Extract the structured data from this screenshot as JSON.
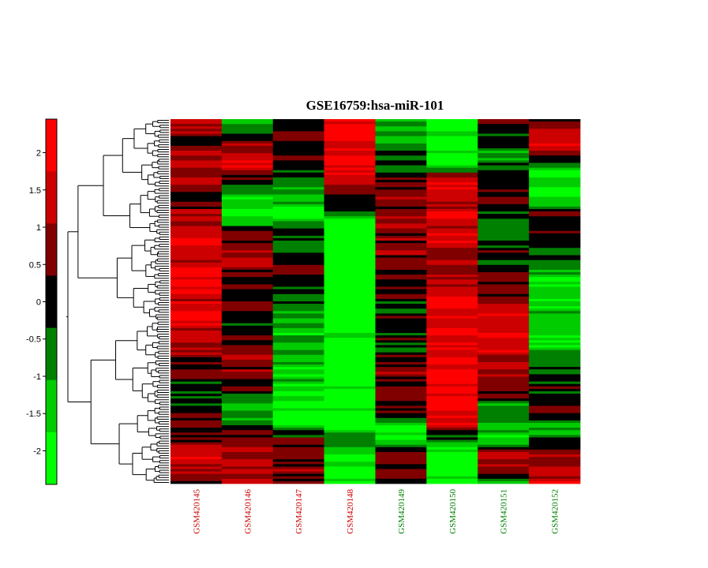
{
  "chart_data": {
    "type": "heatmap",
    "title": "GSE16759:hsa-miR-101",
    "colorbar": {
      "ticks": [
        "2",
        "1.5",
        "1",
        "0.5",
        "0",
        "-0.5",
        "-1",
        "-1.5",
        "-2"
      ],
      "tick_values": [
        2,
        1.5,
        1,
        0.5,
        0,
        -0.5,
        -1,
        -1.5,
        -2
      ],
      "range": [
        -2.45,
        2.45
      ],
      "levels": [
        "#00ff00",
        "#00cc00",
        "#008000",
        "#000000",
        "#800000",
        "#cc0000",
        "#ff0000"
      ]
    },
    "columns": [
      {
        "label": "GSM420145",
        "group_color": "#cc0000"
      },
      {
        "label": "GSM420146",
        "group_color": "#cc0000"
      },
      {
        "label": "GSM420147",
        "group_color": "#cc0000"
      },
      {
        "label": "GSM420148",
        "group_color": "#cc0000"
      },
      {
        "label": "GSM420149",
        "group_color": "#008000"
      },
      {
        "label": "GSM420150",
        "group_color": "#008000"
      },
      {
        "label": "GSM420151",
        "group_color": "#008000"
      },
      {
        "label": "GSM420152",
        "group_color": "#008000"
      }
    ],
    "row_count": 150,
    "column_profiles": [
      [
        [
          0,
          1.0
        ],
        [
          0.07,
          0.5
        ],
        [
          0.14,
          1.5
        ],
        [
          0.2,
          0.3
        ],
        [
          0.3,
          1.6
        ],
        [
          0.45,
          1.8
        ],
        [
          0.6,
          1.4
        ],
        [
          0.72,
          -0.3
        ],
        [
          0.8,
          0.0
        ],
        [
          0.86,
          0.6
        ],
        [
          0.93,
          1.6
        ],
        [
          1,
          0.4
        ]
      ],
      [
        [
          0,
          -1.5
        ],
        [
          0.06,
          0.8
        ],
        [
          0.12,
          1.6
        ],
        [
          0.18,
          -0.2
        ],
        [
          0.26,
          -2.2
        ],
        [
          0.32,
          1.0
        ],
        [
          0.42,
          0.4
        ],
        [
          0.55,
          0.0
        ],
        [
          0.7,
          0.9
        ],
        [
          0.8,
          -1.2
        ],
        [
          0.9,
          1.2
        ],
        [
          1,
          1.6
        ]
      ],
      [
        [
          0,
          0.4
        ],
        [
          0.1,
          0.2
        ],
        [
          0.2,
          -0.8
        ],
        [
          0.26,
          -2.2
        ],
        [
          0.3,
          -0.6
        ],
        [
          0.42,
          0.0
        ],
        [
          0.55,
          -0.9
        ],
        [
          0.7,
          -1.6
        ],
        [
          0.82,
          -2.0
        ],
        [
          0.88,
          0.3
        ],
        [
          0.95,
          0.6
        ],
        [
          1,
          0.2
        ]
      ],
      [
        [
          0,
          2.0
        ],
        [
          0.15,
          1.8
        ],
        [
          0.2,
          0.6
        ],
        [
          0.26,
          -1.0
        ],
        [
          0.3,
          -2.4
        ],
        [
          0.55,
          -2.4
        ],
        [
          0.75,
          -2.3
        ],
        [
          0.84,
          -2.2
        ],
        [
          0.88,
          0.2
        ],
        [
          0.93,
          -2.4
        ],
        [
          1,
          -2.0
        ]
      ],
      [
        [
          0,
          -1.5
        ],
        [
          0.1,
          -0.8
        ],
        [
          0.2,
          0.5
        ],
        [
          0.3,
          0.8
        ],
        [
          0.4,
          0.3
        ],
        [
          0.5,
          0.0
        ],
        [
          0.62,
          -0.2
        ],
        [
          0.7,
          0.8
        ],
        [
          0.8,
          0.4
        ],
        [
          0.86,
          -2.2
        ],
        [
          0.92,
          0.5
        ],
        [
          1,
          0.2
        ]
      ],
      [
        [
          0,
          -2.4
        ],
        [
          0.12,
          -2.2
        ],
        [
          0.14,
          -0.5
        ],
        [
          0.16,
          1.9
        ],
        [
          0.3,
          1.6
        ],
        [
          0.42,
          0.6
        ],
        [
          0.46,
          1.5
        ],
        [
          0.7,
          2.0
        ],
        [
          0.84,
          1.8
        ],
        [
          0.9,
          -1.6
        ],
        [
          1,
          -2.2
        ]
      ],
      [
        [
          0,
          0.8
        ],
        [
          0.1,
          -1.2
        ],
        [
          0.18,
          0.4
        ],
        [
          0.28,
          -0.6
        ],
        [
          0.36,
          -0.2
        ],
        [
          0.46,
          0.4
        ],
        [
          0.6,
          1.9
        ],
        [
          0.74,
          0.3
        ],
        [
          0.82,
          -0.8
        ],
        [
          0.88,
          -1.8
        ],
        [
          0.93,
          1.4
        ],
        [
          1,
          -0.6
        ]
      ],
      [
        [
          0,
          0.7
        ],
        [
          0.08,
          1.8
        ],
        [
          0.12,
          -1.2
        ],
        [
          0.2,
          -1.8
        ],
        [
          0.26,
          0.0
        ],
        [
          0.34,
          0.4
        ],
        [
          0.44,
          -1.8
        ],
        [
          0.62,
          -1.2
        ],
        [
          0.72,
          -0.3
        ],
        [
          0.8,
          0.2
        ],
        [
          0.86,
          -1.0
        ],
        [
          0.92,
          0.8
        ],
        [
          1,
          1.4
        ]
      ]
    ]
  }
}
